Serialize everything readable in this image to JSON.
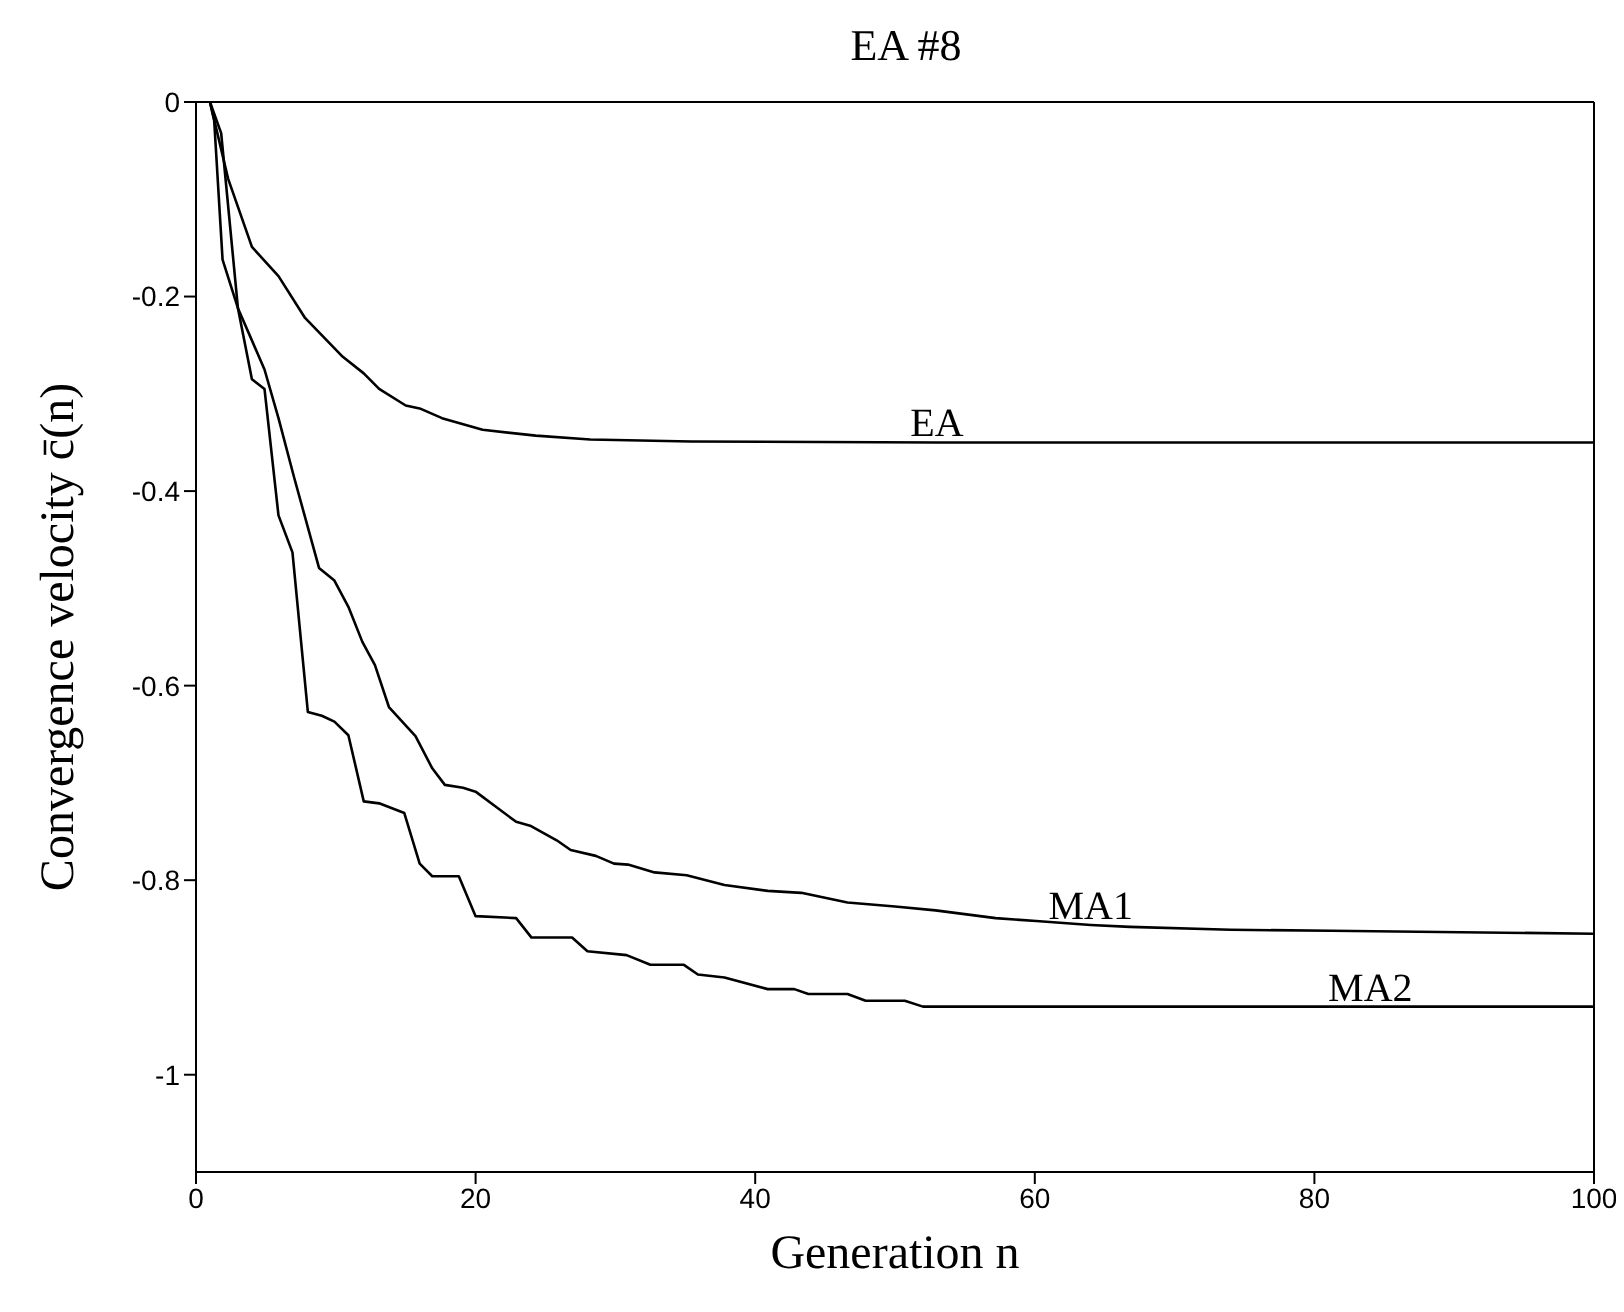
{
  "chart_data": {
    "type": "line",
    "title": "EA #8",
    "xlabel": "Generation n",
    "ylabel": "Convergence velocity c̄(n)",
    "xlim": [
      0,
      100
    ],
    "xticks": [
      0,
      20,
      40,
      60,
      80,
      100
    ],
    "ylim": [
      -1.1,
      0
    ],
    "yticks": [
      -1,
      -0.8,
      -0.6,
      -0.4,
      -0.2,
      0
    ],
    "grid": false,
    "legend": false,
    "marker": "none",
    "line_style": "solid",
    "series": [
      {
        "name": "EA",
        "color": "#000000",
        "x": [
          1,
          2.3,
          4,
          5.9,
          7.8,
          10.5,
          12,
          13.1,
          15,
          16,
          17.6,
          20.5,
          24.3,
          28.2,
          35.4,
          53,
          100
        ],
        "values": [
          0,
          -0.079,
          -0.149,
          -0.179,
          -0.222,
          -0.262,
          -0.279,
          -0.295,
          -0.312,
          -0.315,
          -0.325,
          -0.337,
          -0.343,
          -0.347,
          -0.349,
          -0.35,
          -0.35
        ]
      },
      {
        "name": "MA1",
        "color": "#000000",
        "x": [
          1,
          1.8,
          3,
          4.9,
          5.9,
          7,
          8.8,
          9.9,
          10.9,
          11.9,
          12.8,
          13.8,
          15.7,
          16.9,
          17.8,
          19.1,
          20,
          22.9,
          23.9,
          25.8,
          26.8,
          28.6,
          29.9,
          30.9,
          32.8,
          35.1,
          37.8,
          40.9,
          43.3,
          46.6,
          50,
          52.9,
          57.2,
          60.1,
          64,
          66.8,
          74,
          81.2,
          100
        ],
        "values": [
          0,
          -0.032,
          -0.212,
          -0.275,
          -0.325,
          -0.385,
          -0.479,
          -0.492,
          -0.519,
          -0.555,
          -0.579,
          -0.622,
          -0.652,
          -0.685,
          -0.702,
          -0.705,
          -0.709,
          -0.74,
          -0.744,
          -0.759,
          -0.769,
          -0.775,
          -0.783,
          -0.784,
          -0.792,
          -0.795,
          -0.805,
          -0.811,
          -0.813,
          -0.823,
          -0.827,
          -0.831,
          -0.839,
          -0.842,
          -0.846,
          -0.848,
          -0.851,
          -0.852,
          -0.855
        ]
      },
      {
        "name": "MA2",
        "color": "#000000",
        "x": [
          1,
          1.3,
          1.9,
          3,
          4,
          4.9,
          5.9,
          6.9,
          8,
          9,
          9.9,
          10.9,
          12,
          13.1,
          14.9,
          16,
          16.9,
          18.8,
          20,
          22.9,
          24,
          26.9,
          28,
          30.8,
          32.5,
          34.9,
          35.9,
          37.8,
          40.9,
          42.8,
          43.8,
          46.6,
          47.9,
          50.7,
          52,
          84,
          100
        ],
        "values": [
          0,
          -0.019,
          -0.162,
          -0.212,
          -0.285,
          -0.295,
          -0.425,
          -0.463,
          -0.627,
          -0.631,
          -0.637,
          -0.651,
          -0.719,
          -0.721,
          -0.731,
          -0.783,
          -0.796,
          -0.796,
          -0.837,
          -0.839,
          -0.859,
          -0.859,
          -0.873,
          -0.877,
          -0.887,
          -0.887,
          -0.897,
          -0.9,
          -0.912,
          -0.912,
          -0.917,
          -0.917,
          -0.924,
          -0.924,
          -0.93,
          -0.93,
          -0.93
        ]
      }
    ]
  }
}
